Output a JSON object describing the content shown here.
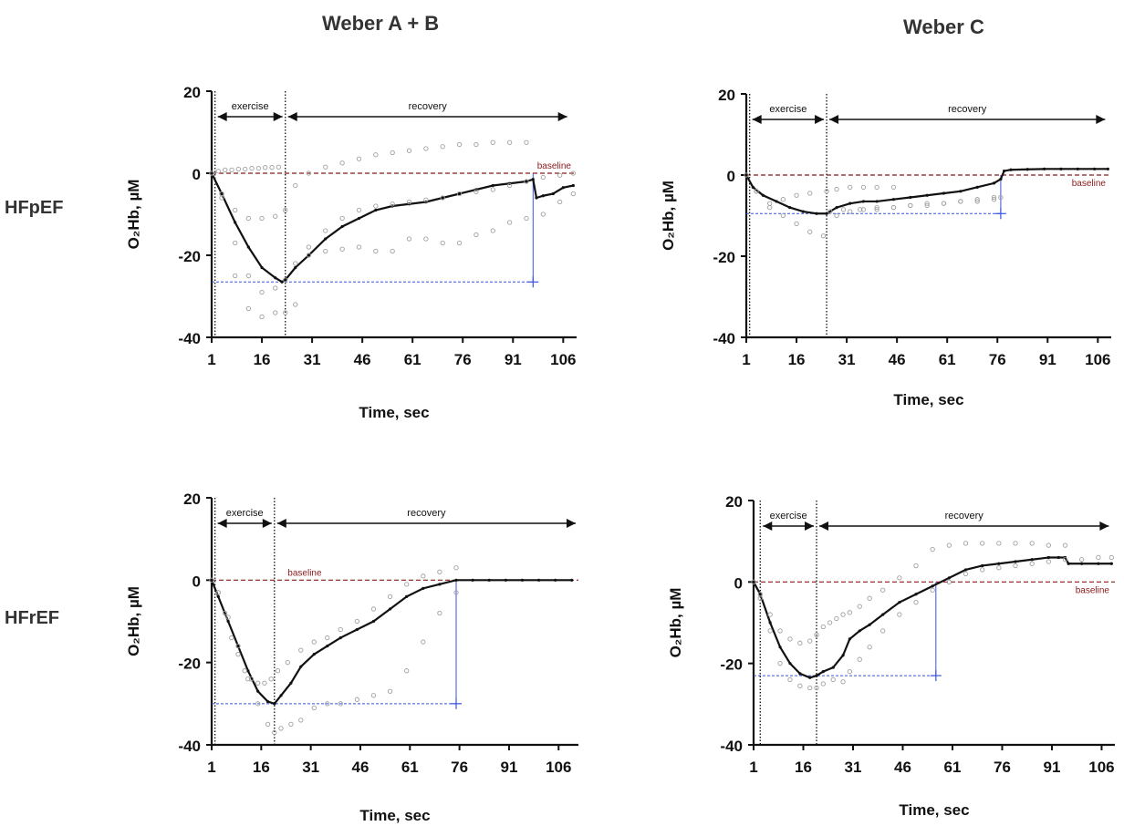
{
  "figure": {
    "col_titles": [
      "Weber A + B",
      "Weber C"
    ],
    "row_labels": [
      "HFpEF",
      "HFrEF"
    ]
  },
  "colors": {
    "mean_line": "#111111",
    "individual_points": "#a0a0a0",
    "baseline": "#8b1a1a",
    "guide": "#3a52e0",
    "phase_marker": "#111111"
  },
  "chart_data": [
    {
      "type": "line",
      "panel": "Weber A + B / HFpEF",
      "xlabel": "Time, sec",
      "ylabel": "O₂Hb, µM",
      "xticks": [
        1,
        16,
        31,
        46,
        61,
        76,
        91,
        106
      ],
      "yticks": [
        20,
        0,
        -20,
        -40
      ],
      "xlim": [
        1,
        110
      ],
      "ylim": [
        -40,
        20
      ],
      "phases": [
        {
          "label": "exercise",
          "from": 2,
          "to": 23
        },
        {
          "label": "recovery",
          "from": 23,
          "to": 108
        }
      ],
      "baseline": {
        "label": "baseline",
        "y": 0
      },
      "guide": {
        "x": 97,
        "y": -26.5
      },
      "series": [
        {
          "kind": "mean",
          "x": [
            1,
            4,
            8,
            12,
            16,
            20,
            22,
            23,
            26,
            30,
            35,
            40,
            45,
            50,
            55,
            60,
            65,
            70,
            75,
            80,
            85,
            90,
            95,
            97,
            98,
            100,
            103,
            106,
            109
          ],
          "y": [
            0,
            -5,
            -12,
            -18,
            -23,
            -25.5,
            -26.5,
            -26,
            -23,
            -20,
            -16,
            -13,
            -11,
            -9,
            -8,
            -7.5,
            -7,
            -6,
            -5,
            -4,
            -3,
            -2.5,
            -2,
            -1.5,
            -6,
            -5.5,
            -5,
            -3.5,
            -3
          ]
        },
        {
          "kind": "individual",
          "x": [
            1,
            4,
            8,
            12,
            16,
            20,
            23,
            26,
            30,
            35,
            40,
            45,
            50,
            55,
            60,
            65,
            70,
            75,
            80,
            85,
            90,
            95
          ],
          "y": [
            0,
            -5,
            -9,
            -11,
            -11,
            -10.5,
            -9,
            -3,
            0,
            1.5,
            2.5,
            3.5,
            4.5,
            5,
            5.5,
            6,
            6.5,
            7,
            7,
            7.5,
            7.5,
            7.5
          ]
        },
        {
          "kind": "individual",
          "x": [
            1,
            4,
            8,
            12,
            16,
            20,
            23,
            26,
            30,
            35,
            40,
            45,
            50,
            55,
            60,
            65,
            70,
            75,
            80,
            85,
            90,
            95,
            100,
            105,
            109
          ],
          "y": [
            0,
            -5,
            -17,
            -25,
            -29,
            -28,
            -26,
            -22,
            -18,
            -14,
            -11,
            -9,
            -8,
            -7.5,
            -7,
            -6.5,
            -6,
            -5,
            -4.5,
            -4,
            -3,
            -2,
            -1,
            -0.5,
            0
          ]
        },
        {
          "kind": "individual",
          "x": [
            1,
            4,
            8,
            12,
            16,
            20,
            23,
            26,
            30,
            35,
            40,
            45,
            50,
            55,
            60,
            65,
            70,
            75,
            80,
            85,
            90,
            95,
            100,
            105,
            109
          ],
          "y": [
            0,
            -6,
            -25,
            -33,
            -35,
            -34,
            -34,
            -32,
            -20,
            -19,
            -18.5,
            -18,
            -19,
            -19,
            -16,
            -16,
            -17,
            -17,
            -15,
            -14,
            -12,
            -11,
            -10,
            -7,
            -5
          ]
        },
        {
          "kind": "individual",
          "x": [
            1,
            3,
            5,
            7,
            9,
            11,
            13,
            15,
            17,
            19,
            21
          ],
          "y": [
            0,
            0.5,
            0.8,
            0.8,
            1,
            1,
            1.2,
            1.2,
            1.4,
            1.4,
            1.5
          ]
        }
      ]
    },
    {
      "type": "line",
      "panel": "Weber C / HFpEF",
      "xlabel": "Time, sec",
      "ylabel": "O₂Hb, µM",
      "xticks": [
        1,
        16,
        31,
        46,
        61,
        76,
        91,
        106
      ],
      "yticks": [
        20,
        0,
        -20,
        -40
      ],
      "xlim": [
        1,
        110
      ],
      "ylim": [
        -40,
        20
      ],
      "phases": [
        {
          "label": "exercise",
          "from": 2,
          "to": 25
        },
        {
          "label": "recovery",
          "from": 25,
          "to": 109
        }
      ],
      "baseline": {
        "label": "baseline",
        "y": 0
      },
      "guide": {
        "x": 77,
        "y": -9.5
      },
      "series": [
        {
          "kind": "mean",
          "x": [
            1,
            3,
            6,
            10,
            14,
            18,
            22,
            25,
            28,
            32,
            36,
            40,
            45,
            50,
            55,
            60,
            65,
            70,
            75,
            77,
            78,
            80,
            85,
            90,
            95,
            100,
            105,
            109
          ],
          "y": [
            0,
            -3,
            -5,
            -6.5,
            -8,
            -9,
            -9.5,
            -9.5,
            -8,
            -7,
            -6.5,
            -6.5,
            -6,
            -5.5,
            -5,
            -4.5,
            -4,
            -3,
            -2,
            -1,
            1,
            1.3,
            1.4,
            1.5,
            1.5,
            1.5,
            1.5,
            1.5
          ]
        },
        {
          "kind": "individual",
          "x": [
            1,
            4,
            8,
            12,
            16,
            20,
            25,
            28,
            32,
            36,
            40,
            45
          ],
          "y": [
            0,
            -4,
            -7,
            -6,
            -5,
            -4.5,
            -4,
            -3.5,
            -3,
            -3,
            -3,
            -3
          ]
        },
        {
          "kind": "individual",
          "x": [
            1,
            4,
            8,
            12,
            16,
            20,
            24,
            28,
            32,
            36,
            40,
            45,
            50,
            55,
            60,
            65,
            70,
            75
          ],
          "y": [
            0,
            -4,
            -8,
            -10,
            -12,
            -14,
            -15,
            -10,
            -9,
            -8.5,
            -8.5,
            -8,
            -7.5,
            -7.5,
            -7,
            -6.5,
            -6,
            -5.5
          ]
        },
        {
          "kind": "individual",
          "x": [
            26,
            30,
            35,
            40,
            45,
            50,
            55,
            60,
            65,
            70,
            75,
            77
          ],
          "y": [
            -9,
            -8.5,
            -8.5,
            -8,
            -8,
            -7.5,
            -7,
            -7,
            -6.5,
            -6.5,
            -6,
            -5.5
          ]
        }
      ]
    },
    {
      "type": "line",
      "panel": "Weber A + B / HFrEF",
      "xlabel": "Time, sec",
      "ylabel": "O₂Hb, µM",
      "xticks": [
        1,
        16,
        31,
        46,
        61,
        76,
        91,
        106
      ],
      "yticks": [
        20,
        0,
        -20,
        -40
      ],
      "xlim": [
        1,
        112
      ],
      "ylim": [
        -40,
        20
      ],
      "phases": [
        {
          "label": "exercise",
          "from": 2,
          "to": 20
        },
        {
          "label": "recovery",
          "from": 20,
          "to": 112
        }
      ],
      "baseline": {
        "label": "baseline",
        "y": 0
      },
      "guide": {
        "x": 75,
        "y": -30
      },
      "series": [
        {
          "kind": "mean",
          "x": [
            1,
            3,
            6,
            9,
            12,
            15,
            18,
            20,
            22,
            25,
            28,
            32,
            36,
            40,
            45,
            50,
            55,
            60,
            65,
            70,
            75,
            80,
            85,
            90,
            95,
            100,
            105,
            110
          ],
          "y": [
            0,
            -4,
            -10,
            -16,
            -22,
            -27,
            -29.5,
            -30,
            -28,
            -25,
            -21,
            -18,
            -16,
            -14,
            -12,
            -10,
            -7,
            -4,
            -2,
            -1,
            0,
            0,
            0,
            0,
            0,
            0,
            0,
            0
          ]
        },
        {
          "kind": "individual",
          "x": [
            1,
            3,
            6,
            9,
            12,
            15,
            18,
            20,
            22,
            25,
            28,
            32,
            36,
            40,
            45,
            50,
            55,
            60,
            65,
            70,
            75
          ],
          "y": [
            0,
            -3,
            -9,
            -16,
            -24,
            -30,
            -35,
            -37,
            -36,
            -35,
            -34,
            -31,
            -30,
            -30,
            -29,
            -28,
            -27,
            -22,
            -15,
            -8,
            -3
          ]
        },
        {
          "kind": "individual",
          "x": [
            3,
            5,
            7,
            9,
            11,
            13,
            15,
            17,
            19,
            21,
            24,
            28,
            32,
            36,
            40,
            45,
            50,
            55,
            60,
            65,
            70,
            75
          ],
          "y": [
            -3,
            -8,
            -14,
            -18,
            -22,
            -24,
            -25,
            -25,
            -24,
            -22,
            -20,
            -17,
            -15,
            -14,
            -12,
            -10,
            -7,
            -4,
            -1,
            1,
            2,
            3
          ]
        }
      ]
    },
    {
      "type": "line",
      "panel": "Weber C / HFrEF",
      "xlabel": "Time, sec",
      "ylabel": "O₂Hb, µM",
      "xticks": [
        1,
        16,
        31,
        46,
        61,
        76,
        91,
        106
      ],
      "yticks": [
        20,
        0,
        -20,
        -40
      ],
      "xlim": [
        1,
        110
      ],
      "ylim": [
        -40,
        20
      ],
      "phases": [
        {
          "label": "exercise",
          "from": 3,
          "to": 20
        },
        {
          "label": "recovery",
          "from": 20,
          "to": 109
        }
      ],
      "baseline": {
        "label": "baseline",
        "y": 0
      },
      "guide": {
        "x": 56,
        "y": -23
      },
      "series": [
        {
          "kind": "mean",
          "x": [
            1,
            3,
            6,
            9,
            12,
            15,
            18,
            20,
            22,
            25,
            28,
            30,
            33,
            36,
            40,
            45,
            50,
            55,
            60,
            65,
            70,
            75,
            80,
            85,
            90,
            93,
            95,
            96,
            100,
            105,
            109
          ],
          "y": [
            0,
            -3,
            -10,
            -16,
            -20,
            -22.5,
            -23.5,
            -23,
            -22,
            -21,
            -18,
            -14,
            -12,
            -10.5,
            -8,
            -5,
            -3,
            -1,
            1,
            3,
            4,
            4.5,
            5,
            5.5,
            6,
            6,
            6,
            4.5,
            4.5,
            4.5,
            4.5
          ]
        },
        {
          "kind": "individual",
          "x": [
            1,
            3,
            6,
            9,
            12,
            15,
            18,
            20,
            22,
            24,
            26,
            28,
            30,
            33,
            36,
            40,
            45,
            50,
            55,
            60,
            65,
            70,
            75,
            80,
            85,
            90,
            95
          ],
          "y": [
            0,
            -3,
            -8,
            -12,
            -14,
            -15,
            -14.5,
            -13,
            -11,
            -10,
            -9,
            -8,
            -7.5,
            -6,
            -4,
            -2,
            1,
            4,
            8,
            9,
            9.5,
            9.5,
            9.5,
            9.5,
            9.5,
            9,
            9
          ]
        },
        {
          "kind": "individual",
          "x": [
            3,
            6,
            9,
            12,
            15,
            18,
            20,
            22,
            25,
            28,
            30,
            33,
            36,
            40,
            45,
            50,
            55,
            60,
            65,
            70,
            75,
            80,
            85,
            90,
            95,
            100,
            105,
            109
          ],
          "y": [
            -4,
            -12,
            -20,
            -24,
            -25.5,
            -26,
            -26,
            -25,
            -24,
            -24.5,
            -22,
            -19,
            -16,
            -12,
            -8,
            -5,
            -2,
            0,
            2,
            3,
            3.5,
            4,
            4.5,
            5,
            5.5,
            5.5,
            6,
            6
          ]
        }
      ]
    }
  ]
}
